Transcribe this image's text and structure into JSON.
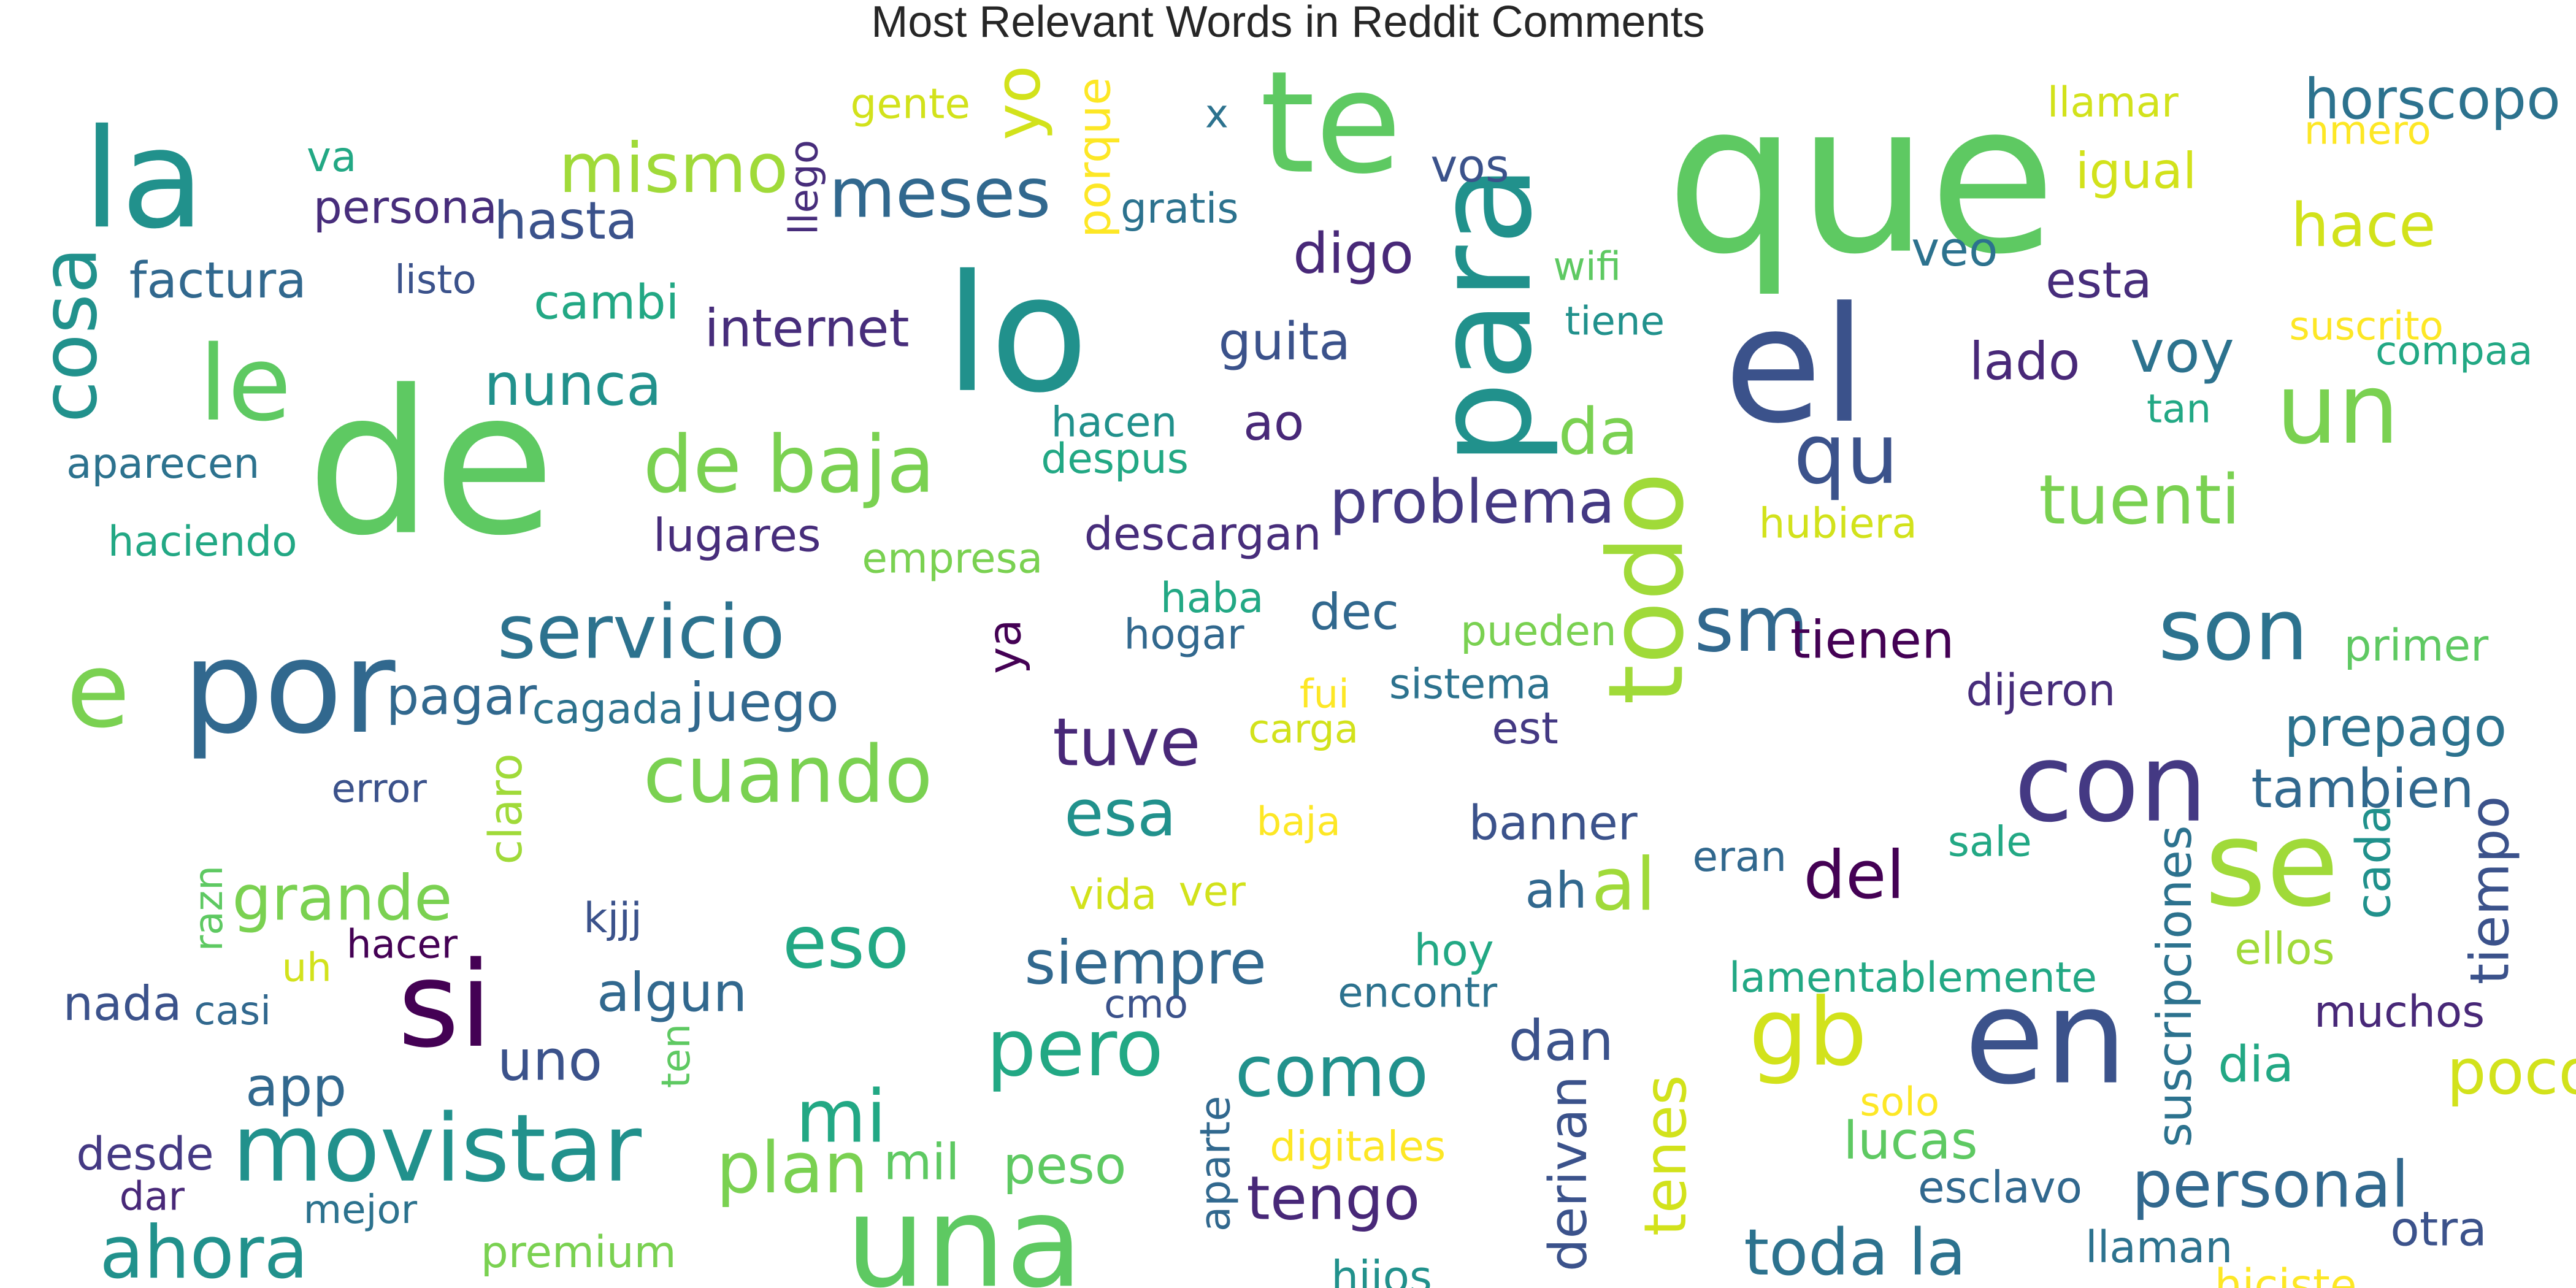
{
  "chart_data": {
    "type": "wordcloud",
    "title": "Most Relevant Words in Reddit Comments",
    "colormap": "viridis",
    "background": "#ffffff",
    "words": [
      {
        "text": "que",
        "weight": 100,
        "color": "#5ec962",
        "rotated": false
      },
      {
        "text": "de",
        "weight": 96,
        "color": "#5ec962",
        "rotated": false
      },
      {
        "text": "lo",
        "weight": 78,
        "color": "#21918c",
        "rotated": false
      },
      {
        "text": "el",
        "weight": 77,
        "color": "#3b528b",
        "rotated": false
      },
      {
        "text": "te",
        "weight": 68,
        "color": "#5ec962",
        "rotated": false
      },
      {
        "text": "la",
        "weight": 66,
        "color": "#21918c",
        "rotated": false
      },
      {
        "text": "para",
        "weight": 64,
        "color": "#21918c",
        "rotated": true
      },
      {
        "text": "en",
        "weight": 63,
        "color": "#3b528b",
        "rotated": false
      },
      {
        "text": "por",
        "weight": 62,
        "color": "#31688e",
        "rotated": false
      },
      {
        "text": "una",
        "weight": 61,
        "color": "#5ec962",
        "rotated": false
      },
      {
        "text": "si",
        "weight": 57,
        "color": "#440154",
        "rotated": false
      },
      {
        "text": "se",
        "weight": 57,
        "color": "#a0da39",
        "rotated": false
      },
      {
        "text": "con",
        "weight": 52,
        "color": "#443983",
        "rotated": false
      },
      {
        "text": "todo",
        "weight": 50,
        "color": "#a0da39",
        "rotated": true
      },
      {
        "text": "le",
        "weight": 50,
        "color": "#5ec962",
        "rotated": false
      },
      {
        "text": "e",
        "weight": 50,
        "color": "#7ad151",
        "rotated": false
      },
      {
        "text": "un",
        "weight": 47,
        "color": "#7ad151",
        "rotated": false
      },
      {
        "text": "movistar",
        "weight": 45,
        "color": "#21918c",
        "rotated": false
      },
      {
        "text": "gb",
        "weight": 45,
        "color": "#d2e21b",
        "rotated": false
      },
      {
        "text": "son",
        "weight": 41,
        "color": "#2c728e",
        "rotated": false
      },
      {
        "text": "qu",
        "weight": 40,
        "color": "#3b528b",
        "rotated": false
      },
      {
        "text": "pero",
        "weight": 38,
        "color": "#22a884",
        "rotated": false
      },
      {
        "text": "cuando",
        "weight": 38,
        "color": "#7ad151",
        "rotated": false
      },
      {
        "text": "de baja",
        "weight": 38,
        "color": "#7ad151",
        "rotated": false
      },
      {
        "text": "sm",
        "weight": 37,
        "color": "#31688e",
        "rotated": false
      },
      {
        "text": "cosa",
        "weight": 37,
        "color": "#21918c",
        "rotated": true
      },
      {
        "text": "servicio",
        "weight": 36,
        "color": "#2c728e",
        "rotated": false
      },
      {
        "text": "eso",
        "weight": 35,
        "color": "#22a884",
        "rotated": false
      },
      {
        "text": "mi",
        "weight": 35,
        "color": "#22a884",
        "rotated": false
      },
      {
        "text": "ahora",
        "weight": 35,
        "color": "#21918c",
        "rotated": false
      },
      {
        "text": "al",
        "weight": 35,
        "color": "#a0da39",
        "rotated": false
      },
      {
        "text": "plan",
        "weight": 34,
        "color": "#7ad151",
        "rotated": false
      },
      {
        "text": "como",
        "weight": 34,
        "color": "#21918c",
        "rotated": false
      },
      {
        "text": "tuenti",
        "weight": 33,
        "color": "#7ad151",
        "rotated": false
      },
      {
        "text": "mismo",
        "weight": 33,
        "color": "#a0da39",
        "rotated": false
      },
      {
        "text": "meses",
        "weight": 33,
        "color": "#31688e",
        "rotated": false
      },
      {
        "text": "del",
        "weight": 32,
        "color": "#440154",
        "rotated": false
      },
      {
        "text": "tuve",
        "weight": 32,
        "color": "#482878",
        "rotated": false
      },
      {
        "text": "esa",
        "weight": 31,
        "color": "#21918c",
        "rotated": false
      },
      {
        "text": "da",
        "weight": 31,
        "color": "#7ad151",
        "rotated": false
      },
      {
        "text": "personal",
        "weight": 31,
        "color": "#31688e",
        "rotated": false
      },
      {
        "text": "toda la",
        "weight": 31,
        "color": "#2c728e",
        "rotated": false
      },
      {
        "text": "poco",
        "weight": 30,
        "color": "#d2e21b",
        "rotated": false
      },
      {
        "text": "yo",
        "weight": 30,
        "color": "#d2e21b",
        "rotated": true
      },
      {
        "text": "grande",
        "weight": 30,
        "color": "#7ad151",
        "rotated": false
      },
      {
        "text": "problema",
        "weight": 29,
        "color": "#443983",
        "rotated": false
      },
      {
        "text": "siempre",
        "weight": 29,
        "color": "#31688e",
        "rotated": false
      },
      {
        "text": "tengo",
        "weight": 29,
        "color": "#482878",
        "rotated": false
      },
      {
        "text": "hace",
        "weight": 29,
        "color": "#d2e21b",
        "rotated": false
      },
      {
        "text": "nunca",
        "weight": 28,
        "color": "#21918c",
        "rotated": false
      },
      {
        "text": "voy",
        "weight": 28,
        "color": "#2c728e",
        "rotated": false
      },
      {
        "text": "tenes",
        "weight": 28,
        "color": "#d2e21b",
        "rotated": true
      },
      {
        "text": "uno",
        "weight": 27,
        "color": "#3b528b",
        "rotated": false
      },
      {
        "text": "horscopo",
        "weight": 27,
        "color": "#2c728e",
        "rotated": false
      },
      {
        "text": "digo",
        "weight": 27,
        "color": "#482878",
        "rotated": false
      },
      {
        "text": "dan",
        "weight": 27,
        "color": "#3b528b",
        "rotated": false
      },
      {
        "text": "tiempo",
        "weight": 26,
        "color": "#3b528b",
        "rotated": true
      },
      {
        "text": "app",
        "weight": 26,
        "color": "#31688e",
        "rotated": false
      },
      {
        "text": "tambien",
        "weight": 26,
        "color": "#31688e",
        "rotated": false
      },
      {
        "text": "prepago",
        "weight": 26,
        "color": "#2c728e",
        "rotated": false
      },
      {
        "text": "algun",
        "weight": 26,
        "color": "#31688e",
        "rotated": false
      },
      {
        "text": "juego",
        "weight": 26,
        "color": "#31688e",
        "rotated": false
      },
      {
        "text": "hasta",
        "weight": 25,
        "color": "#3b528b",
        "rotated": false
      },
      {
        "text": "guita",
        "weight": 25,
        "color": "#3b528b",
        "rotated": false
      },
      {
        "text": "derivan",
        "weight": 25,
        "color": "#3b528b",
        "rotated": true
      },
      {
        "text": "lado",
        "weight": 25,
        "color": "#482878",
        "rotated": false
      },
      {
        "text": "tienen",
        "weight": 25,
        "color": "#440154",
        "rotated": false
      },
      {
        "text": "pagar",
        "weight": 25,
        "color": "#31688e",
        "rotated": false
      },
      {
        "text": "lucas",
        "weight": 25,
        "color": "#5ec962",
        "rotated": false
      },
      {
        "text": "peso",
        "weight": 25,
        "color": "#5ec962",
        "rotated": false
      },
      {
        "text": "internet",
        "weight": 25,
        "color": "#472d7b",
        "rotated": false
      },
      {
        "text": "igual",
        "weight": 24,
        "color": "#d2e21b",
        "rotated": false
      },
      {
        "text": "mil",
        "weight": 24,
        "color": "#5ec962",
        "rotated": false
      },
      {
        "text": "factura",
        "weight": 24,
        "color": "#31688e",
        "rotated": false
      },
      {
        "text": "dec",
        "weight": 24,
        "color": "#31688e",
        "rotated": false
      },
      {
        "text": "ao",
        "weight": 24,
        "color": "#482878",
        "rotated": false
      },
      {
        "text": "dia",
        "weight": 24,
        "color": "#22a884",
        "rotated": false
      },
      {
        "text": "esta",
        "weight": 24,
        "color": "#472d7b",
        "rotated": false
      },
      {
        "text": "ah",
        "weight": 24,
        "color": "#31688e",
        "rotated": false
      },
      {
        "text": "banner",
        "weight": 23,
        "color": "#3b528b",
        "rotated": false
      },
      {
        "text": "otra",
        "weight": 23,
        "color": "#3b528b",
        "rotated": false
      },
      {
        "text": "veo",
        "weight": 23,
        "color": "#2c728e",
        "rotated": false
      },
      {
        "text": "cambi",
        "weight": 23,
        "color": "#22a884",
        "rotated": false
      },
      {
        "text": "nada",
        "weight": 23,
        "color": "#3b528b",
        "rotated": false
      },
      {
        "text": "cada",
        "weight": 23,
        "color": "#21918c",
        "rotated": true
      },
      {
        "text": "suscripciones",
        "weight": 23,
        "color": "#2c728e",
        "rotated": true
      },
      {
        "text": "vos",
        "weight": 22,
        "color": "#3b528b",
        "rotated": false
      },
      {
        "text": "ya",
        "weight": 22,
        "color": "#440154",
        "rotated": true
      },
      {
        "text": "descargan",
        "weight": 22,
        "color": "#472d7b",
        "rotated": false
      },
      {
        "text": "claro",
        "weight": 22,
        "color": "#a0da39",
        "rotated": true
      },
      {
        "text": "porque",
        "weight": 22,
        "color": "#fde725",
        "rotated": true
      },
      {
        "text": "lugares",
        "weight": 22,
        "color": "#472d7b",
        "rotated": false
      },
      {
        "text": "persona",
        "weight": 22,
        "color": "#472d7b",
        "rotated": false
      },
      {
        "text": "desde",
        "weight": 22,
        "color": "#443983",
        "rotated": false
      },
      {
        "text": "hijos",
        "weight": 21,
        "color": "#21918c",
        "rotated": false
      },
      {
        "text": "est",
        "weight": 21,
        "color": "#443983",
        "rotated": false
      },
      {
        "text": "llaman",
        "weight": 21,
        "color": "#2c728e",
        "rotated": false
      },
      {
        "text": "dijeron",
        "weight": 21,
        "color": "#472d7b",
        "rotated": false
      },
      {
        "text": "esclavo",
        "weight": 21,
        "color": "#31688e",
        "rotated": false
      },
      {
        "text": "primer",
        "weight": 21,
        "color": "#5ec962",
        "rotated": false
      },
      {
        "text": "premium",
        "weight": 21,
        "color": "#7ad151",
        "rotated": false
      },
      {
        "text": "hoy",
        "weight": 21,
        "color": "#22a884",
        "rotated": false
      },
      {
        "text": "muchos",
        "weight": 21,
        "color": "#482878",
        "rotated": false
      },
      {
        "text": "ellos",
        "weight": 21,
        "color": "#a0da39",
        "rotated": false
      },
      {
        "text": "hiciste",
        "weight": 21,
        "color": "#fde725",
        "rotated": false
      },
      {
        "text": "haba",
        "weight": 20,
        "color": "#22a884",
        "rotated": false
      },
      {
        "text": "hogar",
        "weight": 20,
        "color": "#31688e",
        "rotated": false
      },
      {
        "text": "gente",
        "weight": 20,
        "color": "#d2e21b",
        "rotated": false
      },
      {
        "text": "va",
        "weight": 20,
        "color": "#22a884",
        "rotated": false
      },
      {
        "text": "haciendo",
        "weight": 20,
        "color": "#22a884",
        "rotated": false
      },
      {
        "text": "aparecen",
        "weight": 20,
        "color": "#2c728e",
        "rotated": false
      },
      {
        "text": "lamentablemente",
        "weight": 20,
        "color": "#22a884",
        "rotated": false
      },
      {
        "text": "aparte",
        "weight": 20,
        "color": "#31688e",
        "rotated": true
      },
      {
        "text": "hacen",
        "weight": 20,
        "color": "#21918c",
        "rotated": false
      },
      {
        "text": "despus",
        "weight": 20,
        "color": "#22a884",
        "rotated": false
      },
      {
        "text": "sistema",
        "weight": 20,
        "color": "#2c728e",
        "rotated": false
      },
      {
        "text": "encontr",
        "weight": 20,
        "color": "#2c728e",
        "rotated": false
      },
      {
        "text": "cagada",
        "weight": 20,
        "color": "#2c728e",
        "rotated": false
      },
      {
        "text": "gratis",
        "weight": 20,
        "color": "#2c728e",
        "rotated": false
      },
      {
        "text": "kjjj",
        "weight": 20,
        "color": "#3b528b",
        "rotated": false
      },
      {
        "text": "eran",
        "weight": 20,
        "color": "#31688e",
        "rotated": false
      },
      {
        "text": "hubiera",
        "weight": 20,
        "color": "#d2e21b",
        "rotated": false
      },
      {
        "text": "digitales",
        "weight": 20,
        "color": "#fde725",
        "rotated": false
      },
      {
        "text": "pueden",
        "weight": 20,
        "color": "#7ad151",
        "rotated": false
      },
      {
        "text": "vida",
        "weight": 20,
        "color": "#d2e21b",
        "rotated": false
      },
      {
        "text": "ver",
        "weight": 20,
        "color": "#d2e21b",
        "rotated": false
      },
      {
        "text": "empresa",
        "weight": 20,
        "color": "#7ad151",
        "rotated": false
      },
      {
        "text": "sale",
        "weight": 20,
        "color": "#22a884",
        "rotated": false
      },
      {
        "text": "llamar",
        "weight": 20,
        "color": "#d2e21b",
        "rotated": false
      },
      {
        "text": "listo",
        "weight": 19,
        "color": "#3b528b",
        "rotated": false
      },
      {
        "text": "error",
        "weight": 19,
        "color": "#3b528b",
        "rotated": false
      },
      {
        "text": "hacer",
        "weight": 19,
        "color": "#440154",
        "rotated": false
      },
      {
        "text": "casi",
        "weight": 19,
        "color": "#31688e",
        "rotated": false
      },
      {
        "text": "dar",
        "weight": 19,
        "color": "#482878",
        "rotated": false
      },
      {
        "text": "mejor",
        "weight": 19,
        "color": "#2c728e",
        "rotated": false
      },
      {
        "text": "uh",
        "weight": 19,
        "color": "#d2e21b",
        "rotated": false
      },
      {
        "text": "razn",
        "weight": 19,
        "color": "#5ec962",
        "rotated": true
      },
      {
        "text": "ten",
        "weight": 19,
        "color": "#5ec962",
        "rotated": true
      },
      {
        "text": "llego",
        "weight": 19,
        "color": "#472d7b",
        "rotated": true
      },
      {
        "text": "fui",
        "weight": 19,
        "color": "#fde725",
        "rotated": false
      },
      {
        "text": "carga",
        "weight": 19,
        "color": "#d2e21b",
        "rotated": false
      },
      {
        "text": "baja",
        "weight": 19,
        "color": "#fde725",
        "rotated": false
      },
      {
        "text": "cmo",
        "weight": 19,
        "color": "#3b528b",
        "rotated": false
      },
      {
        "text": "tiene",
        "weight": 19,
        "color": "#21918c",
        "rotated": false
      },
      {
        "text": "wifi",
        "weight": 19,
        "color": "#5ec962",
        "rotated": false
      },
      {
        "text": "x",
        "weight": 19,
        "color": "#2c728e",
        "rotated": false
      },
      {
        "text": "solo",
        "weight": 19,
        "color": "#fde725",
        "rotated": false
      },
      {
        "text": "tan",
        "weight": 19,
        "color": "#22a884",
        "rotated": false
      },
      {
        "text": "compaa",
        "weight": 19,
        "color": "#22a884",
        "rotated": false
      },
      {
        "text": "suscrito",
        "weight": 19,
        "color": "#fde725",
        "rotated": false
      },
      {
        "text": "nmero",
        "weight": 19,
        "color": "#fde725",
        "rotated": false
      }
    ]
  }
}
